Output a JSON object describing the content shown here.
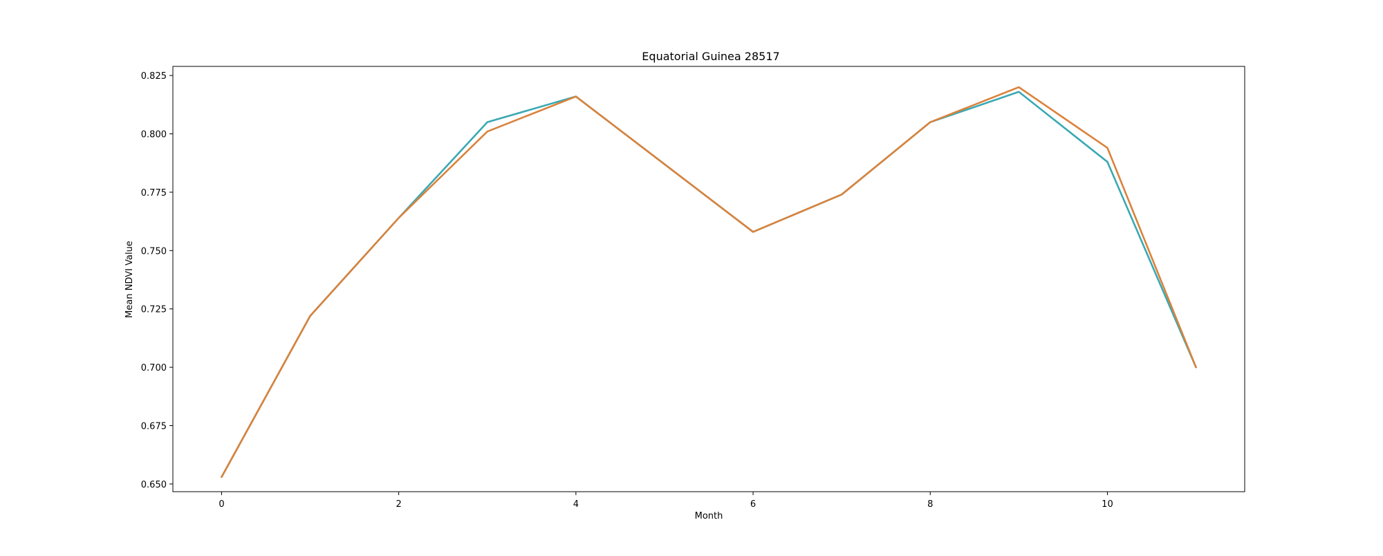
{
  "chart_data": {
    "type": "line",
    "title": "Equatorial Guinea 28517",
    "xlabel": "Month",
    "ylabel": "Mean NDVI Value",
    "x": [
      0,
      1,
      2,
      3,
      4,
      5,
      6,
      7,
      8,
      9,
      10,
      11
    ],
    "xlim": [
      -0.55,
      11.55
    ],
    "ylim": [
      0.6467,
      0.8289
    ],
    "x_ticks": [
      0,
      2,
      4,
      6,
      8,
      10
    ],
    "y_ticks": [
      0.65,
      0.675,
      0.7,
      0.725,
      0.75,
      0.775,
      0.8,
      0.825
    ],
    "y_tick_labels": [
      "0.650",
      "0.675",
      "0.700",
      "0.725",
      "0.750",
      "0.775",
      "0.800",
      "0.825"
    ],
    "grid": false,
    "legend": "none",
    "series": [
      {
        "color": "#3aa8b3",
        "values": [
          0.653,
          0.722,
          0.764,
          0.805,
          0.816,
          0.787,
          0.758,
          0.774,
          0.805,
          0.818,
          0.788,
          0.7
        ]
      },
      {
        "color": "#d9823b",
        "values": [
          0.653,
          0.722,
          0.764,
          0.801,
          0.816,
          0.787,
          0.758,
          0.774,
          0.805,
          0.82,
          0.794,
          0.7
        ]
      }
    ]
  }
}
